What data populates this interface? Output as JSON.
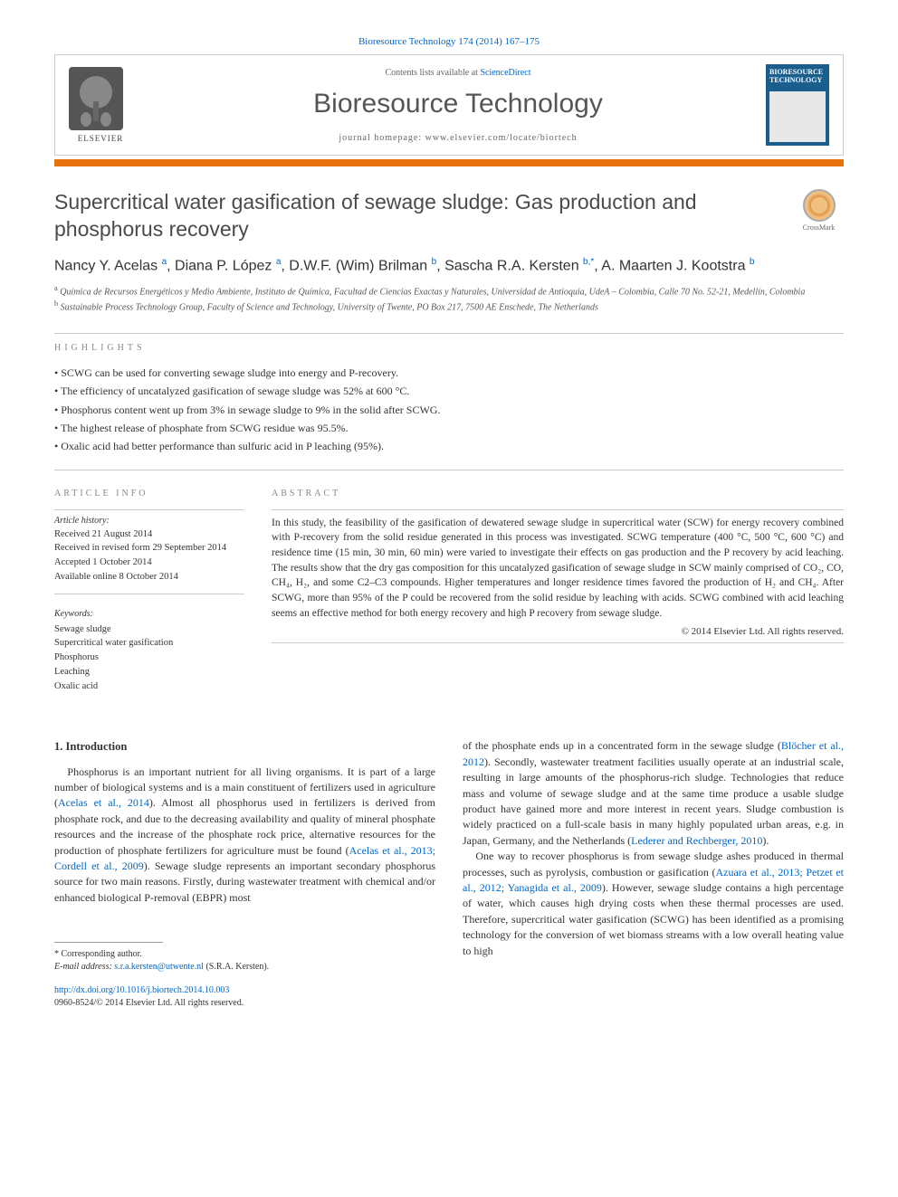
{
  "citation": "Bioresource Technology 174 (2014) 167–175",
  "header": {
    "contents_prefix": "Contents lists available at ",
    "contents_link": "ScienceDirect",
    "journal_name": "Bioresource Technology",
    "homepage": "journal homepage: www.elsevier.com/locate/biortech",
    "elsevier_label": "ELSEVIER",
    "cover_title": "BIORESOURCE TECHNOLOGY",
    "colors": {
      "orange_bar": "#e8730e",
      "cover_bg": "#1a5e8e",
      "link": "#0066cc"
    }
  },
  "crossmark_label": "CrossMark",
  "title": "Supercritical water gasification of sewage sludge: Gas production and phosphorus recovery",
  "authors_html": "Nancy Y. Acelas <sup>a</sup>, Diana P. López <sup>a</sup>, D.W.F. (Wim) Brilman <sup>b</sup>, Sascha R.A. Kersten <sup>b,*</sup>, A. Maarten J. Kootstra <sup>b</sup>",
  "affiliations": [
    {
      "sup": "a",
      "text": "Química de Recursos Energéticos y Medio Ambiente, Instituto de Química, Facultad de Ciencias Exactas y Naturales, Universidad de Antioquia, UdeA – Colombia, Calle 70 No. 52-21, Medellín, Colombia"
    },
    {
      "sup": "b",
      "text": "Sustainable Process Technology Group, Faculty of Science and Technology, University of Twente, PO Box 217, 7500 AE Enschede, The Netherlands"
    }
  ],
  "highlights_label": "HIGHLIGHTS",
  "highlights": [
    "SCWG can be used for converting sewage sludge into energy and P-recovery.",
    "The efficiency of uncatalyzed gasification of sewage sludge was 52% at 600 °C.",
    "Phosphorus content went up from 3% in sewage sludge to 9% in the solid after SCWG.",
    "The highest release of phosphate from SCWG residue was 95.5%.",
    "Oxalic acid had better performance than sulfuric acid in P leaching (95%)."
  ],
  "article_info_label": "ARTICLE INFO",
  "abstract_label": "ABSTRACT",
  "article_history_label": "Article history:",
  "history": [
    "Received 21 August 2014",
    "Received in revised form 29 September 2014",
    "Accepted 1 October 2014",
    "Available online 8 October 2014"
  ],
  "keywords_label": "Keywords:",
  "keywords": [
    "Sewage sludge",
    "Supercritical water gasification",
    "Phosphorus",
    "Leaching",
    "Oxalic acid"
  ],
  "abstract": "In this study, the feasibility of the gasification of dewatered sewage sludge in supercritical water (SCW) for energy recovery combined with P-recovery from the solid residue generated in this process was investigated. SCWG temperature (400 °C, 500 °C, 600 °C) and residence time (15 min, 30 min, 60 min) were varied to investigate their effects on gas production and the P recovery by acid leaching. The results show that the dry gas composition for this uncatalyzed gasification of sewage sludge in SCW mainly comprised of CO₂, CO, CH₄, H₂, and some C2–C3 compounds. Higher temperatures and longer residence times favored the production of H₂ and CH₄. After SCWG, more than 95% of the P could be recovered from the solid residue by leaching with acids. SCWG combined with acid leaching seems an effective method for both energy recovery and high P recovery from sewage sludge.",
  "copyright": "© 2014 Elsevier Ltd. All rights reserved.",
  "intro_heading": "1. Introduction",
  "intro_col1": "Phosphorus is an important nutrient for all living organisms. It is part of a large number of biological systems and is a main constituent of fertilizers used in agriculture (<span class='ref-link'>Acelas et al., 2014</span>). Almost all phosphorus used in fertilizers is derived from phosphate rock, and due to the decreasing availability and quality of mineral phosphate resources and the increase of the phosphate rock price, alternative resources for the production of phosphate fertilizers for agriculture must be found (<span class='ref-link'>Acelas et al., 2013; Cordell et al., 2009</span>). Sewage sludge represents an important secondary phosphorus source for two main reasons. Firstly, during wastewater treatment with chemical and/or enhanced biological P-removal (EBPR) most",
  "intro_col2_p1": "of the phosphate ends up in a concentrated form in the sewage sludge (<span class='ref-link'>Blöcher et al., 2012</span>). Secondly, wastewater treatment facilities usually operate at an industrial scale, resulting in large amounts of the phosphorus-rich sludge. Technologies that reduce mass and volume of sewage sludge and at the same time produce a usable sludge product have gained more and more interest in recent years. Sludge combustion is widely practiced on a full-scale basis in many highly populated urban areas, e.g. in Japan, Germany, and the Netherlands (<span class='ref-link'>Lederer and Rechberger, 2010</span>).",
  "intro_col2_p2": "One way to recover phosphorus is from sewage sludge ashes produced in thermal processes, such as pyrolysis, combustion or gasification (<span class='ref-link'>Azuara et al., 2013; Petzet et al., 2012; Yanagida et al., 2009</span>). However, sewage sludge contains a high percentage of water, which causes high drying costs when these thermal processes are used. Therefore, supercritical water gasification (SCWG) has been identified as a promising technology for the conversion of wet biomass streams with a low overall heating value to high",
  "corresponding_label": "* Corresponding author.",
  "email_label": "E-mail address: ",
  "email": "s.r.a.kersten@utwente.nl",
  "email_suffix": " (S.R.A. Kersten).",
  "doi": "http://dx.doi.org/10.1016/j.biortech.2014.10.003",
  "issn_line": "0960-8524/© 2014 Elsevier Ltd. All rights reserved."
}
